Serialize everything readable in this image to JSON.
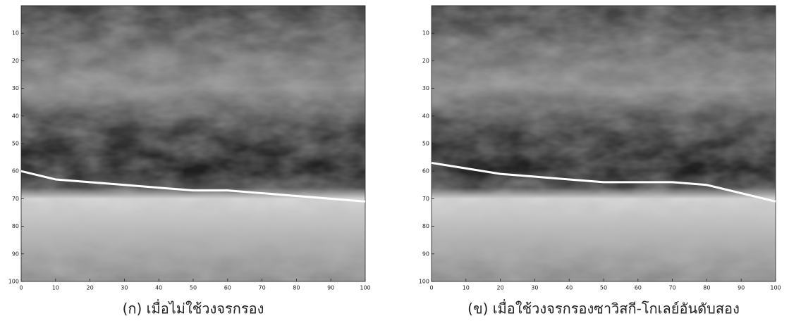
{
  "chart_data": [
    {
      "type": "line",
      "caption": "(ก) เมื่อไม่ใช้วงจรกรอง",
      "x": [
        0,
        10,
        20,
        30,
        40,
        50,
        60,
        70,
        80,
        90,
        100
      ],
      "series": [
        {
          "color": "#ffffff",
          "values": [
            60,
            63,
            64,
            65,
            66,
            67,
            67,
            68,
            69,
            70,
            71
          ]
        }
      ],
      "xlim": [
        0,
        100
      ],
      "ylim": [
        100,
        0
      ],
      "xticks": [
        0,
        10,
        20,
        30,
        40,
        50,
        60,
        70,
        80,
        90,
        100
      ],
      "yticks": [
        10,
        20,
        30,
        40,
        50,
        60,
        70,
        80,
        90,
        100
      ]
    },
    {
      "type": "line",
      "caption": "(ข) เมื่อใช้วงจรกรองซาวิสกี-โกเลย์อันดับสอง",
      "x": [
        0,
        10,
        20,
        30,
        40,
        50,
        60,
        70,
        80,
        90,
        100
      ],
      "series": [
        {
          "color": "#ffffff",
          "values": [
            57,
            59,
            61,
            62,
            63,
            64,
            64,
            64,
            65,
            68,
            71
          ]
        }
      ],
      "xlim": [
        0,
        100
      ],
      "ylim": [
        100,
        0
      ],
      "xticks": [
        0,
        10,
        20,
        30,
        40,
        50,
        60,
        70,
        80,
        90,
        100
      ],
      "yticks": [
        10,
        20,
        30,
        40,
        50,
        60,
        70,
        80,
        90,
        100
      ]
    }
  ]
}
